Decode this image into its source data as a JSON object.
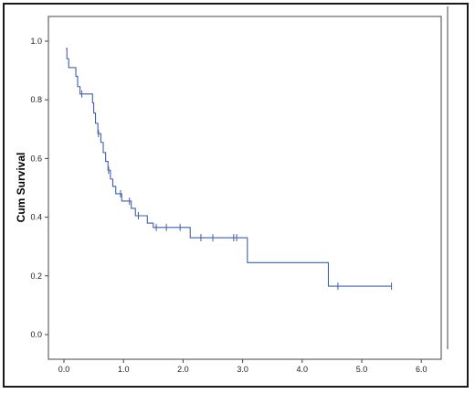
{
  "chart_data": {
    "type": "line",
    "subtype": "kaplan-meier-step",
    "title": "",
    "xlabel": "",
    "ylabel": "Cum Survival",
    "xlim": [
      0,
      6
    ],
    "ylim": [
      0,
      1
    ],
    "x_ticks": [
      "0.0",
      "1.0",
      "2.0",
      "3.0",
      "4.0",
      "5.0",
      "6.0"
    ],
    "y_ticks": [
      "0.0",
      "0.2",
      "0.4",
      "0.6",
      "0.8",
      "1.0"
    ],
    "grid": false,
    "line_color": "#3f5fae",
    "series": [
      {
        "step_points": [
          [
            0.03,
            0.975
          ],
          [
            0.05,
            0.94
          ],
          [
            0.08,
            0.91
          ],
          [
            0.2,
            0.88
          ],
          [
            0.23,
            0.845
          ],
          [
            0.27,
            0.82
          ],
          [
            0.48,
            0.79
          ],
          [
            0.5,
            0.755
          ],
          [
            0.53,
            0.72
          ],
          [
            0.57,
            0.685
          ],
          [
            0.62,
            0.655
          ],
          [
            0.66,
            0.62
          ],
          [
            0.7,
            0.59
          ],
          [
            0.74,
            0.56
          ],
          [
            0.78,
            0.53
          ],
          [
            0.82,
            0.505
          ],
          [
            0.87,
            0.48
          ],
          [
            0.97,
            0.455
          ],
          [
            1.13,
            0.43
          ],
          [
            1.2,
            0.405
          ],
          [
            1.4,
            0.38
          ],
          [
            1.5,
            0.365
          ],
          [
            2.12,
            0.33
          ],
          [
            3.08,
            0.245
          ],
          [
            4.44,
            0.165
          ],
          [
            5.5,
            0.165
          ]
        ],
        "censored": [
          [
            0.3,
            0.82
          ],
          [
            0.58,
            0.685
          ],
          [
            0.75,
            0.56
          ],
          [
            0.95,
            0.48
          ],
          [
            1.1,
            0.455
          ],
          [
            1.25,
            0.405
          ],
          [
            1.55,
            0.365
          ],
          [
            1.72,
            0.365
          ],
          [
            1.95,
            0.365
          ],
          [
            2.3,
            0.33
          ],
          [
            2.5,
            0.33
          ],
          [
            2.85,
            0.33
          ],
          [
            2.9,
            0.33
          ],
          [
            4.6,
            0.165
          ],
          [
            5.5,
            0.165
          ]
        ]
      }
    ]
  }
}
